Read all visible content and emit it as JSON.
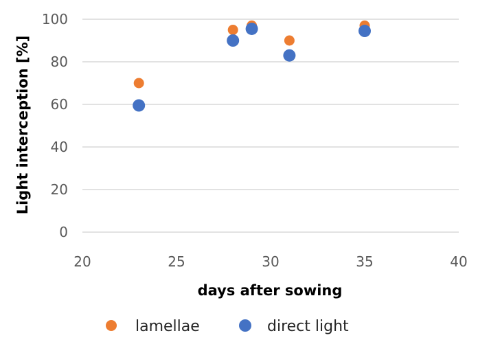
{
  "chart_data": {
    "type": "scatter",
    "title": "",
    "xlabel": "days after sowing",
    "ylabel": "Light interception [%]",
    "xlim": [
      20,
      40
    ],
    "ylim": [
      0,
      100
    ],
    "xticks": [
      20,
      25,
      30,
      35,
      40
    ],
    "yticks": [
      0,
      20,
      40,
      60,
      80,
      100
    ],
    "grid": "horizontal",
    "legend": "bottom",
    "series": [
      {
        "name": "lamellae",
        "color": "#ed7d31",
        "points": [
          {
            "x": 23,
            "y": 70
          },
          {
            "x": 28,
            "y": 95
          },
          {
            "x": 29,
            "y": 97
          },
          {
            "x": 31,
            "y": 90
          },
          {
            "x": 35,
            "y": 97
          }
        ]
      },
      {
        "name": "direct light",
        "color": "#4472c4",
        "points": [
          {
            "x": 23,
            "y": 59.5
          },
          {
            "x": 28,
            "y": 90
          },
          {
            "x": 29,
            "y": 95.5
          },
          {
            "x": 31,
            "y": 83
          },
          {
            "x": 35,
            "y": 94.5
          }
        ]
      }
    ]
  }
}
